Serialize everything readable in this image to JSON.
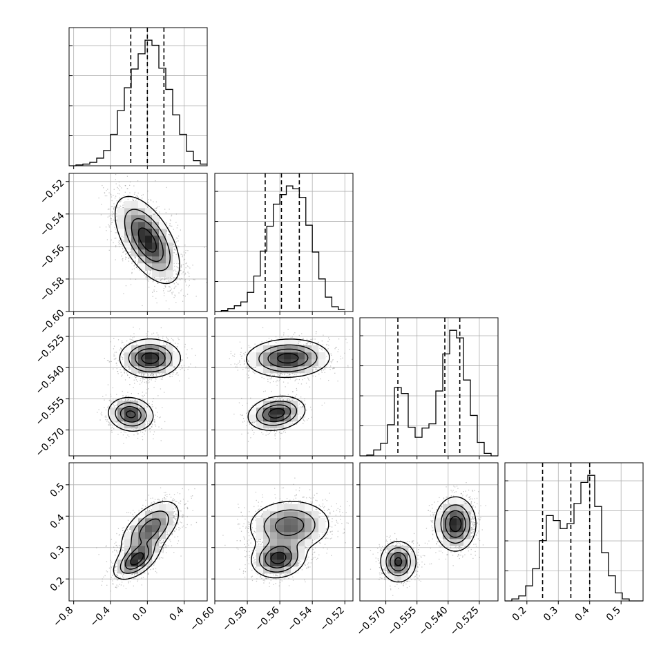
{
  "chart_data": {
    "type": "corner",
    "parameters": [
      {
        "range": [
          -0.85,
          0.65
        ],
        "ticks": [
          -0.8,
          -0.4,
          0.0,
          0.4
        ],
        "tick_labels": [
          "−0.8",
          "−0.4",
          "0.0",
          "0.4"
        ],
        "quantiles": [
          -0.18,
          0.0,
          0.18
        ]
      },
      {
        "range": [
          -0.6,
          -0.515
        ],
        "ticks": [
          -0.6,
          -0.58,
          -0.56,
          -0.54,
          -0.52
        ],
        "tick_labels": [
          "−0.60",
          "−0.58",
          "−0.56",
          "−0.54",
          "−0.52"
        ],
        "quantiles": [
          -0.569,
          -0.559,
          -0.548
        ]
      },
      {
        "range": [
          -0.5825,
          -0.516
        ],
        "ticks": [
          -0.57,
          -0.555,
          -0.54,
          -0.525
        ],
        "tick_labels": [
          "−0.570",
          "−0.555",
          "−0.540",
          "−0.525"
        ],
        "quantiles": [
          -0.5642,
          -0.5416,
          -0.5344
        ]
      },
      {
        "range": [
          0.13,
          0.57
        ],
        "ticks": [
          0.2,
          0.3,
          0.4,
          0.5
        ],
        "tick_labels": [
          "0.2",
          "0.3",
          "0.4",
          "0.5"
        ],
        "quantiles": [
          0.25,
          0.34,
          0.4
        ]
      }
    ],
    "histograms": [
      {
        "bin_edges": [
          -0.85,
          -0.775,
          -0.7,
          -0.625,
          -0.55,
          -0.475,
          -0.4,
          -0.325,
          -0.25,
          -0.175,
          -0.1,
          -0.025,
          0.05,
          0.125,
          0.2,
          0.275,
          0.35,
          0.425,
          0.5,
          0.575,
          0.65
        ],
        "counts": [
          0,
          1,
          2,
          4,
          9,
          18,
          37,
          65,
          92,
          114,
          132,
          148,
          142,
          115,
          90,
          60,
          37,
          17,
          6,
          2
        ]
      },
      {
        "bin_edges": [
          -0.6,
          -0.596,
          -0.592,
          -0.588,
          -0.584,
          -0.58,
          -0.576,
          -0.572,
          -0.568,
          -0.564,
          -0.56,
          -0.556,
          -0.552,
          -0.548,
          -0.544,
          -0.54,
          -0.536,
          -0.532,
          -0.528,
          -0.524,
          -0.52
        ],
        "counts": [
          0,
          1,
          3,
          6,
          10,
          20,
          37,
          63,
          89,
          112,
          122,
          131,
          128,
          119,
          90,
          62,
          34,
          15,
          5,
          2
        ]
      },
      {
        "bin_edges": [
          -0.5825,
          -0.579175,
          -0.57585,
          -0.572525,
          -0.5692,
          -0.565875,
          -0.56255,
          -0.559225,
          -0.5559,
          -0.552575,
          -0.54925,
          -0.545925,
          -0.5426,
          -0.539275,
          -0.53595,
          -0.532625,
          -0.5293,
          -0.525975,
          -0.52265,
          -0.519325,
          -0.516
        ],
        "counts": [
          0,
          1,
          7,
          15,
          37,
          81,
          74,
          34,
          22,
          33,
          38,
          77,
          121,
          149,
          140,
          90,
          48,
          16,
          3,
          0
        ]
      },
      {
        "bin_edges": [
          0.13,
          0.152,
          0.174,
          0.196,
          0.218,
          0.24,
          0.262,
          0.284,
          0.306,
          0.328,
          0.35,
          0.372,
          0.394,
          0.416,
          0.438,
          0.46,
          0.482,
          0.504,
          0.526,
          0.548,
          0.57
        ],
        "counts": [
          0,
          2,
          5,
          15,
          32,
          60,
          85,
          80,
          72,
          77,
          97,
          118,
          125,
          94,
          48,
          25,
          8,
          2,
          0,
          0
        ]
      }
    ],
    "pair_clusters": [
      {
        "row": 1,
        "col": 0,
        "clusters": [
          {
            "mean": [
              0.0,
              -0.556
            ],
            "sd": [
              0.17,
              0.013
            ],
            "rho": -0.58,
            "weight": 1.0
          }
        ]
      },
      {
        "row": 2,
        "col": 0,
        "clusters": [
          {
            "mean": [
              0.03,
              -0.5355
            ],
            "sd": [
              0.16,
              0.0045
            ],
            "rho": 0.0,
            "weight": 0.62
          },
          {
            "mean": [
              -0.18,
              -0.5625
            ],
            "sd": [
              0.12,
              0.004
            ],
            "rho": -0.1,
            "weight": 0.38
          }
        ]
      },
      {
        "row": 2,
        "col": 1,
        "clusters": [
          {
            "mean": [
              -0.555,
              -0.5355
            ],
            "sd": [
              0.0125,
              0.0045
            ],
            "rho": 0.05,
            "weight": 0.62
          },
          {
            "mean": [
              -0.562,
              -0.562
            ],
            "sd": [
              0.0085,
              0.004
            ],
            "rho": 0.2,
            "weight": 0.38
          }
        ]
      },
      {
        "row": 3,
        "col": 0,
        "clusters": [
          {
            "mean": [
              0.03,
              0.36
            ],
            "sd": [
              0.16,
              0.045
            ],
            "rho": 0.55,
            "weight": 0.62
          },
          {
            "mean": [
              -0.12,
              0.26
            ],
            "sd": [
              0.12,
              0.03
            ],
            "rho": 0.55,
            "weight": 0.38
          }
        ]
      },
      {
        "row": 3,
        "col": 1,
        "clusters": [
          {
            "mean": [
              -0.554,
              0.37
            ],
            "sd": [
              0.0125,
              0.04
            ],
            "rho": 0.05,
            "weight": 0.62
          },
          {
            "mean": [
              -0.561,
              0.265
            ],
            "sd": [
              0.008,
              0.03
            ],
            "rho": 0.1,
            "weight": 0.38
          }
        ]
      },
      {
        "row": 3,
        "col": 2,
        "clusters": [
          {
            "mean": [
              -0.5365,
              0.375
            ],
            "sd": [
              0.0048,
              0.042
            ],
            "rho": 0.0,
            "weight": 0.62
          },
          {
            "mean": [
              -0.564,
              0.255
            ],
            "sd": [
              0.0042,
              0.032
            ],
            "rho": 0.0,
            "weight": 0.38
          }
        ]
      }
    ],
    "grid": true,
    "colors": {
      "line": "#000000",
      "grid": "#b0b0b0",
      "points": "#808080",
      "density_min": "#ffffff",
      "density_max": "#000000"
    }
  }
}
